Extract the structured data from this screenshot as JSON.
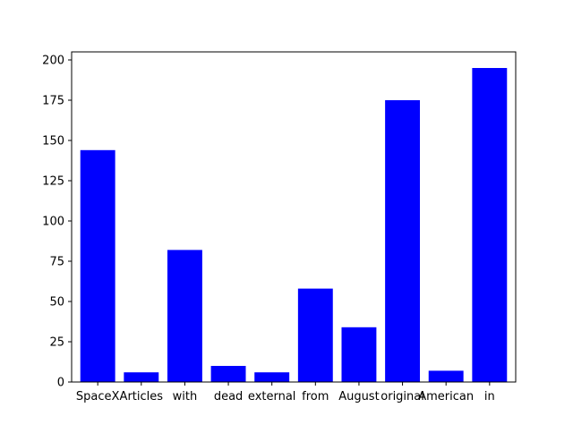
{
  "chart_data": {
    "type": "bar",
    "categories": [
      "SpaceX",
      "Articles",
      "with",
      "dead",
      "external",
      "from",
      "August",
      "original",
      "American",
      "in"
    ],
    "values": [
      144,
      6,
      82,
      10,
      6,
      58,
      34,
      175,
      7,
      195
    ],
    "title": "",
    "xlabel": "",
    "ylabel": "",
    "ylim": [
      0,
      205
    ],
    "yticks": [
      0,
      25,
      50,
      75,
      100,
      125,
      150,
      175,
      200
    ],
    "bar_color": "#0000ff",
    "grid": false,
    "legend": "none"
  }
}
